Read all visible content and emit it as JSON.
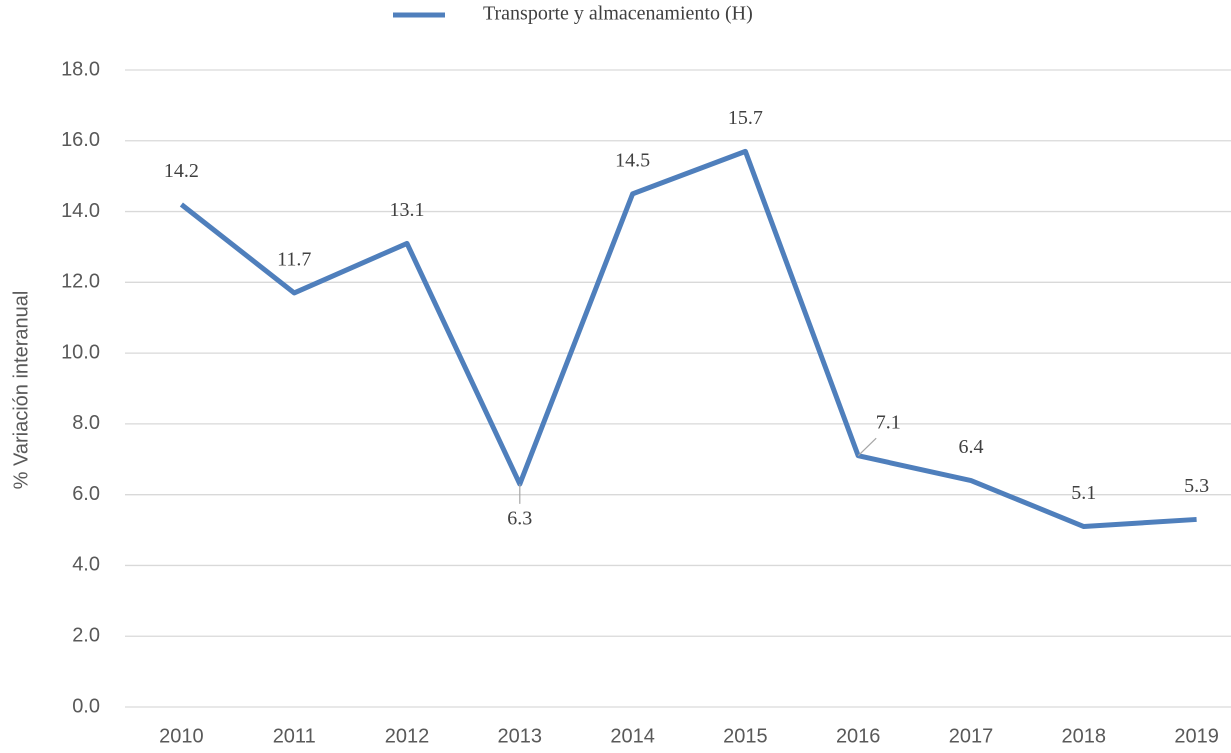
{
  "chart_data": {
    "type": "line",
    "y_label": "% Variación interanual",
    "categories": [
      "2010",
      "2011",
      "2012",
      "2013",
      "2014",
      "2015",
      "2016",
      "2017",
      "2018",
      "2019"
    ],
    "series": [
      {
        "name": "Transporte y almacenamiento (H)",
        "color": "#4f7fbc",
        "values": [
          14.2,
          11.7,
          13.1,
          6.3,
          14.5,
          15.7,
          7.1,
          6.4,
          5.1,
          5.3
        ]
      }
    ],
    "ylim": [
      0,
      18
    ],
    "yticks": [
      {
        "value": 0,
        "label": "0.0"
      },
      {
        "value": 2,
        "label": "2.0"
      },
      {
        "value": 4,
        "label": "4.0"
      },
      {
        "value": 6,
        "label": "6.0"
      },
      {
        "value": 8,
        "label": "8.0"
      },
      {
        "value": 10,
        "label": "10.0"
      },
      {
        "value": 12,
        "label": "12.0"
      },
      {
        "value": 14,
        "label": "14.0"
      },
      {
        "value": 16,
        "label": "16.0"
      },
      {
        "value": 18,
        "label": "18.0"
      }
    ],
    "grid": true,
    "legend": "top"
  }
}
